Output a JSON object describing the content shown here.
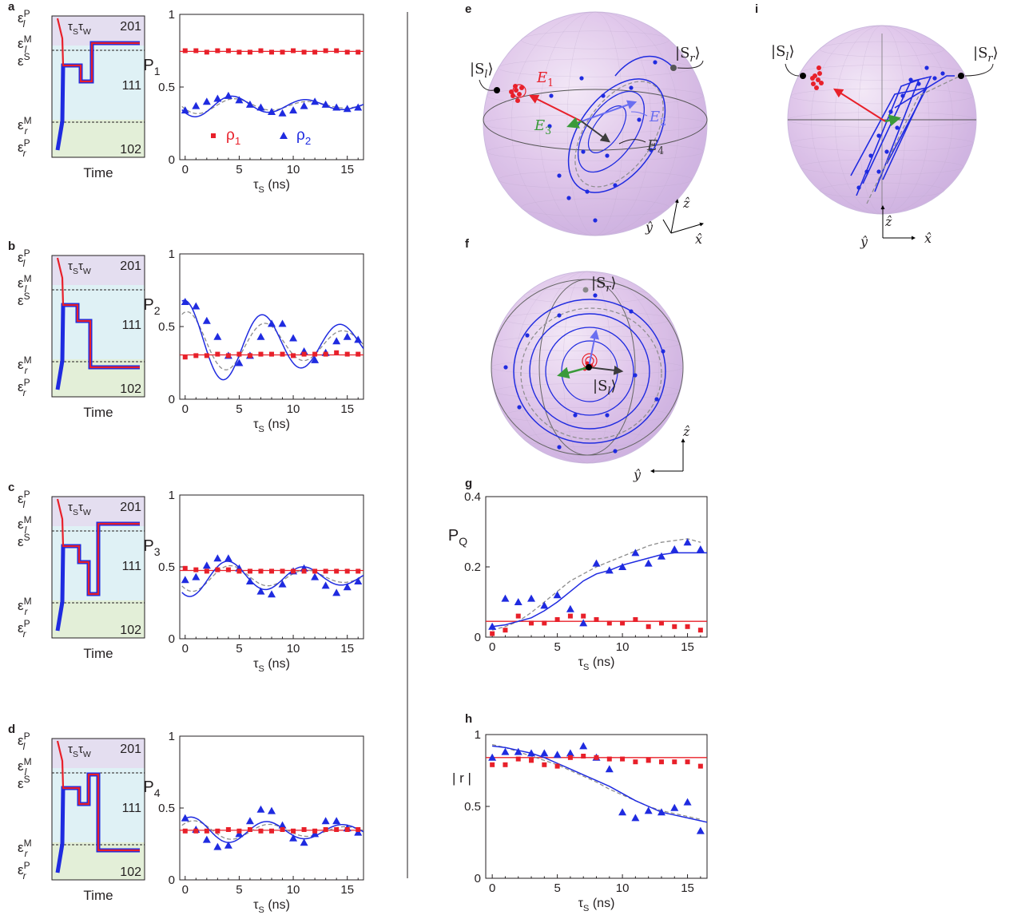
{
  "colors": {
    "rho1": "#e8202a",
    "rho2": "#1f2be0",
    "dashed_fit": "#8c8c8c",
    "region_201": "#e4def0",
    "region_111": "#dff1f5",
    "region_102": "#e3efd8",
    "sphere": "#d9b8e6",
    "E1": "#e8202a",
    "E2": "#6a6ef0",
    "E3": "#3a9a3a",
    "E4": "#3c3c3c"
  },
  "pulse_panels": [
    {
      "letter": "a",
      "levels": [
        "ε",
        "P",
        "l"
      ],
      "region_labels": [
        "201",
        "111",
        "102"
      ],
      "taus": "τ",
      "tau_s_sub": "S",
      "tau_w": "τ",
      "tau_w_sub": "W",
      "time_label": "Time"
    },
    {
      "letter": "b",
      "region_labels": [
        "201",
        "111",
        "102"
      ],
      "time_label": "Time"
    },
    {
      "letter": "c",
      "region_labels": [
        "201",
        "111",
        "102"
      ],
      "time_label": "Time"
    },
    {
      "letter": "d",
      "region_labels": [
        "201",
        "111",
        "102"
      ],
      "time_label": "Time"
    }
  ],
  "level_labels": {
    "eps": "ε",
    "P": "P",
    "M": "M",
    "S": "S",
    "l": "l",
    "r": "r"
  },
  "chart_data": [
    {
      "panel": "a",
      "type": "scatter",
      "ylabel": "P",
      "ylabel_sub": "1",
      "xlabel": "τ",
      "xlabel_sub": "S",
      "xlabel_unit": " (ns)",
      "xlim": [
        -0.5,
        16.5
      ],
      "ylim": [
        0,
        1
      ],
      "yticks": [
        "1",
        "0.5",
        "0"
      ],
      "ytick_values": [
        1,
        0.5,
        0
      ],
      "xticks": [
        "0",
        "5",
        "10",
        "15"
      ],
      "legend": [
        {
          "marker": "■",
          "label": "ρ",
          "sub": "1"
        },
        {
          "marker": "▲",
          "label": "ρ",
          "sub": "2"
        }
      ],
      "series": [
        {
          "name": "ρ1",
          "marker": "square",
          "x": [
            0,
            1,
            2,
            3,
            4,
            5,
            6,
            7,
            8,
            9,
            10,
            11,
            12,
            13,
            14,
            15,
            16
          ],
          "y": [
            0.75,
            0.75,
            0.74,
            0.75,
            0.75,
            0.74,
            0.74,
            0.75,
            0.74,
            0.74,
            0.75,
            0.74,
            0.74,
            0.75,
            0.75,
            0.74,
            0.74
          ],
          "fit": 0.745
        },
        {
          "name": "ρ2",
          "marker": "triangle",
          "x": [
            0,
            1,
            2,
            3,
            4,
            5,
            6,
            7,
            8,
            9,
            10,
            11,
            12,
            13,
            14,
            15,
            16
          ],
          "y": [
            0.34,
            0.37,
            0.4,
            0.42,
            0.44,
            0.41,
            0.38,
            0.36,
            0.33,
            0.32,
            0.34,
            0.37,
            0.4,
            0.38,
            0.36,
            0.35,
            0.36
          ]
        }
      ],
      "fit_ρ2": {
        "mean": 0.375,
        "amp": 0.085,
        "period": 6.8,
        "phase": 4.4,
        "decay": 14
      }
    },
    {
      "panel": "b",
      "type": "scatter",
      "ylabel": "P",
      "ylabel_sub": "2",
      "xlabel": "τ",
      "xlabel_sub": "S",
      "xlabel_unit": " (ns)",
      "xlim": [
        -0.5,
        16.5
      ],
      "ylim": [
        0,
        1
      ],
      "yticks": [
        "1",
        "0.5",
        "0"
      ],
      "ytick_values": [
        1,
        0.5,
        0
      ],
      "xticks": [
        "0",
        "5",
        "10",
        "15"
      ],
      "series": [
        {
          "name": "ρ1",
          "marker": "square",
          "x": [
            0,
            1,
            2,
            3,
            4,
            5,
            6,
            7,
            8,
            9,
            10,
            11,
            12,
            13,
            14,
            15,
            16
          ],
          "y": [
            0.29,
            0.3,
            0.3,
            0.31,
            0.3,
            0.31,
            0.3,
            0.31,
            0.31,
            0.31,
            0.3,
            0.31,
            0.31,
            0.31,
            0.32,
            0.31,
            0.31
          ],
          "fit": 0.305
        },
        {
          "name": "ρ2",
          "marker": "triangle",
          "x": [
            0,
            1,
            2,
            3,
            4,
            5,
            6,
            7,
            8,
            9,
            10,
            11,
            12,
            13,
            14,
            15,
            16
          ],
          "y": [
            0.67,
            0.64,
            0.54,
            0.43,
            0.3,
            0.25,
            0.3,
            0.43,
            0.52,
            0.52,
            0.42,
            0.33,
            0.27,
            0.32,
            0.4,
            0.43,
            0.41
          ]
        }
      ],
      "fit_ρ2": {
        "mean": 0.38,
        "amp": 0.3,
        "period": 7.2,
        "phase": 0,
        "decay": 18
      }
    },
    {
      "panel": "c",
      "type": "scatter",
      "ylabel": "P",
      "ylabel_sub": "3",
      "xlabel": "τ",
      "xlabel_sub": "S",
      "xlabel_unit": " (ns)",
      "xlim": [
        -0.5,
        16.5
      ],
      "ylim": [
        0,
        1
      ],
      "yticks": [
        "1",
        "0.5",
        "0"
      ],
      "ytick_values": [
        1,
        0.5,
        0
      ],
      "xticks": [
        "0",
        "5",
        "10",
        "15"
      ],
      "series": [
        {
          "name": "ρ1",
          "marker": "square",
          "x": [
            0,
            1,
            2,
            3,
            4,
            5,
            6,
            7,
            8,
            9,
            10,
            11,
            12,
            13,
            14,
            15,
            16
          ],
          "y": [
            0.49,
            0.48,
            0.47,
            0.48,
            0.48,
            0.47,
            0.47,
            0.47,
            0.47,
            0.47,
            0.47,
            0.47,
            0.47,
            0.47,
            0.47,
            0.47,
            0.47
          ],
          "fit": 0.475
        },
        {
          "name": "ρ2",
          "marker": "triangle",
          "x": [
            0,
            1,
            2,
            3,
            4,
            5,
            6,
            7,
            8,
            9,
            10,
            11,
            12,
            13,
            14,
            15,
            16
          ],
          "y": [
            0.41,
            0.43,
            0.51,
            0.56,
            0.56,
            0.49,
            0.4,
            0.33,
            0.31,
            0.38,
            0.47,
            0.49,
            0.43,
            0.37,
            0.32,
            0.36,
            0.4
          ]
        }
      ],
      "fit_ρ2": {
        "mean": 0.43,
        "amp": 0.14,
        "period": 7.0,
        "phase": 4.0,
        "decay": 16
      }
    },
    {
      "panel": "d",
      "type": "scatter",
      "ylabel": "P",
      "ylabel_sub": "4",
      "xlabel": "τ",
      "xlabel_sub": "S",
      "xlabel_unit": " (ns)",
      "xlim": [
        -0.5,
        16.5
      ],
      "ylim": [
        0,
        1
      ],
      "yticks": [
        "1",
        "0.5",
        "0"
      ],
      "ytick_values": [
        1,
        0.5,
        0
      ],
      "xticks": [
        "0",
        "5",
        "10",
        "15"
      ],
      "series": [
        {
          "name": "ρ1",
          "marker": "square",
          "x": [
            0,
            1,
            2,
            3,
            4,
            5,
            6,
            7,
            8,
            9,
            10,
            11,
            12,
            13,
            14,
            15,
            16
          ],
          "y": [
            0.34,
            0.34,
            0.34,
            0.34,
            0.35,
            0.34,
            0.35,
            0.34,
            0.34,
            0.35,
            0.34,
            0.35,
            0.34,
            0.35,
            0.35,
            0.35,
            0.35
          ],
          "fit": 0.345
        },
        {
          "name": "ρ2",
          "marker": "triangle",
          "x": [
            0,
            1,
            2,
            3,
            4,
            5,
            6,
            7,
            8,
            9,
            10,
            11,
            12,
            13,
            14,
            15,
            16
          ],
          "y": [
            0.43,
            0.35,
            0.28,
            0.23,
            0.24,
            0.32,
            0.41,
            0.49,
            0.48,
            0.38,
            0.29,
            0.26,
            0.32,
            0.41,
            0.41,
            0.36,
            0.33
          ]
        }
      ],
      "fit_ρ2": {
        "mean": 0.34,
        "amp": 0.1,
        "period": 7.0,
        "phase": 0.6,
        "decay": 18
      }
    },
    {
      "panel": "g",
      "type": "scatter",
      "ylabel": "P",
      "ylabel_sub": "Q",
      "xlabel": "τ",
      "xlabel_sub": "S",
      "xlabel_unit": " (ns)",
      "xlim": [
        -0.5,
        16.5
      ],
      "ylim": [
        0,
        0.4
      ],
      "yticks": [
        "0.4",
        "0.2",
        "0"
      ],
      "ytick_values": [
        0.4,
        0.2,
        0
      ],
      "xticks": [
        "0",
        "5",
        "10",
        "15"
      ],
      "series": [
        {
          "name": "ρ1",
          "marker": "square",
          "x": [
            0,
            1,
            2,
            3,
            4,
            5,
            6,
            7,
            8,
            9,
            10,
            11,
            12,
            13,
            14,
            15,
            16
          ],
          "y": [
            0.01,
            0.02,
            0.06,
            0.04,
            0.04,
            0.05,
            0.06,
            0.06,
            0.05,
            0.04,
            0.04,
            0.05,
            0.03,
            0.04,
            0.03,
            0.03,
            0.02
          ],
          "fit": 0.045
        },
        {
          "name": "ρ2",
          "marker": "triangle",
          "x": [
            0,
            1,
            2,
            3,
            4,
            5,
            6,
            7,
            8,
            9,
            10,
            11,
            12,
            13,
            14,
            15,
            16
          ],
          "y": [
            0.03,
            0.11,
            0.1,
            0.11,
            0.09,
            0.12,
            0.08,
            0.04,
            0.21,
            0.19,
            0.2,
            0.24,
            0.21,
            0.23,
            0.25,
            0.27,
            0.25
          ]
        }
      ],
      "fit_ρ2_curve": {
        "x": [
          0,
          1,
          2,
          3,
          4,
          5,
          6,
          7,
          8,
          9,
          10,
          11,
          12,
          13,
          14,
          15,
          16
        ],
        "y": [
          0.03,
          0.035,
          0.045,
          0.055,
          0.075,
          0.1,
          0.13,
          0.16,
          0.18,
          0.19,
          0.205,
          0.215,
          0.225,
          0.235,
          0.24,
          0.24,
          0.24
        ]
      },
      "dashed_curve": {
        "x": [
          0,
          1,
          2,
          3,
          4,
          5,
          6,
          7,
          8,
          9,
          10,
          11,
          12,
          13,
          14,
          15,
          16
        ],
        "y": [
          0.02,
          0.03,
          0.045,
          0.07,
          0.1,
          0.13,
          0.16,
          0.18,
          0.2,
          0.215,
          0.23,
          0.245,
          0.26,
          0.27,
          0.275,
          0.28,
          0.27
        ]
      }
    },
    {
      "panel": "h",
      "type": "scatter",
      "ylabel": "| r |",
      "xlabel": "τ",
      "xlabel_sub": "S",
      "xlabel_unit": " (ns)",
      "xlim": [
        -0.5,
        16.5
      ],
      "ylim": [
        0,
        1
      ],
      "yticks": [
        "1",
        "0.5",
        "0"
      ],
      "ytick_values": [
        1,
        0.5,
        0
      ],
      "xticks": [
        "0",
        "5",
        "10",
        "15"
      ],
      "series": [
        {
          "name": "ρ1",
          "marker": "square",
          "x": [
            0,
            1,
            2,
            3,
            4,
            5,
            6,
            7,
            8,
            9,
            10,
            11,
            12,
            13,
            14,
            15,
            16
          ],
          "y": [
            0.79,
            0.79,
            0.83,
            0.82,
            0.79,
            0.78,
            0.84,
            0.85,
            0.84,
            0.83,
            0.83,
            0.81,
            0.82,
            0.81,
            0.81,
            0.81,
            0.78
          ],
          "fit": 0.84
        },
        {
          "name": "ρ2",
          "marker": "triangle",
          "x": [
            0,
            1,
            2,
            3,
            4,
            5,
            6,
            7,
            8,
            9,
            10,
            11,
            12,
            13,
            14,
            15,
            16
          ],
          "y": [
            0.84,
            0.88,
            0.88,
            0.87,
            0.87,
            0.86,
            0.87,
            0.92,
            0.84,
            0.76,
            0.46,
            0.42,
            0.47,
            0.46,
            0.49,
            0.53,
            0.33
          ]
        }
      ],
      "fit_ρ2_curve": {
        "x": [
          0,
          1,
          2,
          3,
          4,
          5,
          6,
          7,
          8,
          9,
          10,
          11,
          12,
          13,
          14,
          15,
          16
        ],
        "y": [
          0.92,
          0.91,
          0.89,
          0.87,
          0.84,
          0.8,
          0.76,
          0.72,
          0.68,
          0.64,
          0.59,
          0.54,
          0.5,
          0.46,
          0.44,
          0.42,
          0.4
        ]
      },
      "dashed_curve": {
        "x": [
          0,
          1,
          2,
          3,
          4,
          5,
          6,
          7,
          8,
          9,
          10,
          11,
          12,
          13,
          14,
          15,
          16
        ],
        "y": [
          0.93,
          0.91,
          0.88,
          0.85,
          0.82,
          0.79,
          0.75,
          0.71,
          0.67,
          0.62,
          0.58,
          0.54,
          0.5,
          0.47,
          0.45,
          0.43,
          0.41
        ]
      }
    }
  ],
  "bloch": {
    "e": {
      "letter": "e",
      "state_left": "|S",
      "state_left_sub": "l",
      "state_right": "|S",
      "state_right_sub": "r",
      "ket_close": "⟩",
      "E1": "E",
      "E1_sub": "1",
      "E2": "E",
      "E2_sub": "2",
      "E3": "E",
      "E3_sub": "3",
      "E4": "E",
      "E4_sub": "4",
      "ax_y": "ŷ",
      "ax_z": "ẑ",
      "ax_x": "x̂"
    },
    "f": {
      "letter": "f",
      "state_left": "|S",
      "state_left_sub": "l",
      "state_right": "|S",
      "state_right_sub": "r",
      "ket_close": "⟩",
      "ax_z": "ẑ",
      "ax_y": "ŷ"
    },
    "i": {
      "letter": "i",
      "state_left": "|S",
      "state_left_sub": "l",
      "state_right": "|S",
      "state_right_sub": "r",
      "ket_close": "⟩",
      "ax_z": "ẑ",
      "ax_y": "ŷ",
      "ax_x": "x̂"
    },
    "g_letter": "g",
    "h_letter": "h"
  }
}
